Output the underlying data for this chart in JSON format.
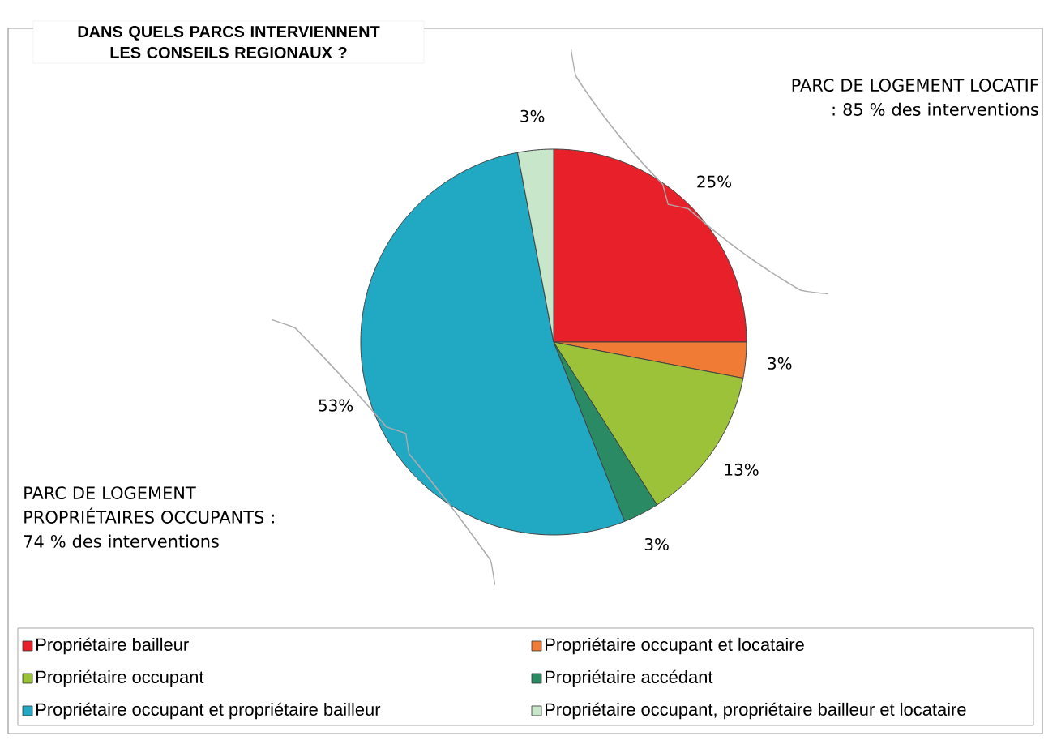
{
  "chart_data": {
    "type": "pie",
    "title": "DANS QUELS PARCS INTERVIENNENT LES CONSEILS REGIONAUX ?",
    "categories": [
      "Propriétaire bailleur",
      "Propriétaire occupant et locataire",
      "Propriétaire occupant",
      "Propriétaire accédant",
      "Propriétaire occupant et propriétaire bailleur",
      "Propriétaire occupant, propriétaire bailleur et locataire"
    ],
    "values": [
      25,
      3,
      13,
      3,
      53,
      3
    ],
    "colors": [
      "#e8202a",
      "#f07b35",
      "#9cc23a",
      "#2a8a64",
      "#21a9c3",
      "#c8e6c9"
    ],
    "value_labels": [
      "25%",
      "3%",
      "13%",
      "3%",
      "53%",
      "3%"
    ],
    "annotations": [
      "PARC DE LOGEMENT LOCATIF : 85 % des interventions",
      "PARC DE LOGEMENT PROPRIÉTAIRES OCCUPANTS : 74 % des interventions"
    ],
    "legend": "bottom"
  }
}
